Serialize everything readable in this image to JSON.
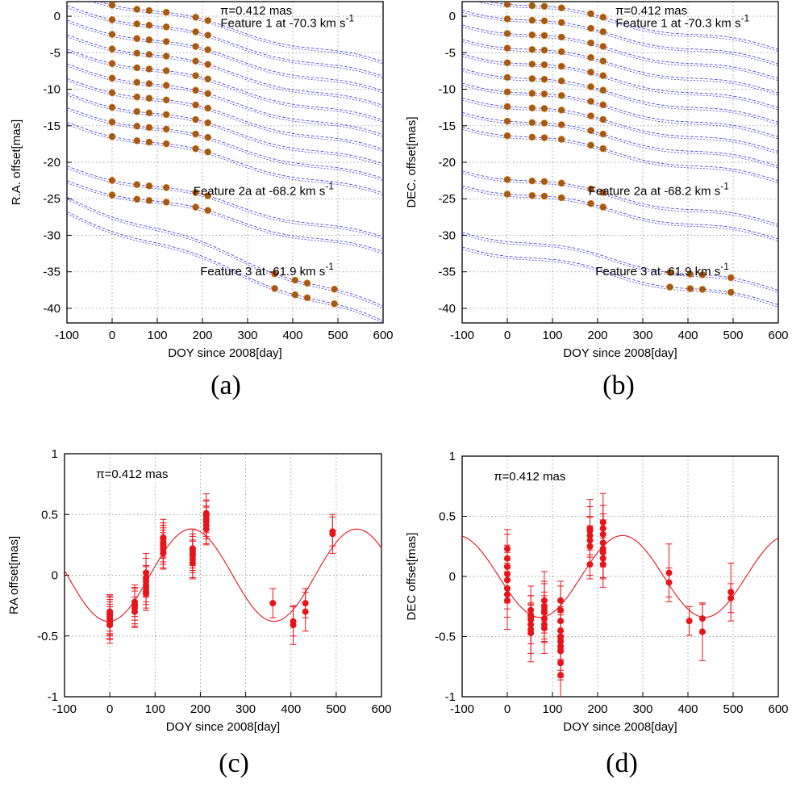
{
  "chart_data": [
    {
      "id": "a",
      "type": "line",
      "panel_label": "(a)",
      "xlabel": "DOY since 2008[day]",
      "ylabel": "R.A. offset[mas]",
      "xlim": [
        -100,
        600
      ],
      "ylim": [
        -42,
        2
      ],
      "xticks": [
        -100,
        0,
        100,
        200,
        300,
        400,
        500,
        600
      ],
      "yticks": [
        0,
        -5,
        -10,
        -15,
        -20,
        -25,
        -30,
        -35,
        -40
      ],
      "grid": true,
      "parallax": "π=0.412 mas",
      "feature_labels": [
        {
          "text": "Feature 1 at -70.3 km s",
          "sup": "-1",
          "at": [
            240,
            -1.5
          ]
        },
        {
          "text": "Feature 2a at -68.2 km s",
          "sup": "-1",
          "at": [
            180,
            -24.5
          ]
        },
        {
          "text": "Feature 3 at -61.9 km s",
          "sup": "-1",
          "at": [
            195,
            -35.5
          ]
        }
      ],
      "series": [
        {
          "name": "F1 spot 1",
          "start": 2.0,
          "epochs": [
            0,
            55,
            82,
            120,
            185,
            212
          ],
          "end": [
            -20,
            -6.5
          ],
          "pair": 0.3,
          "phase": 0
        },
        {
          "name": "F1 spot 2",
          "start": 0.0,
          "epochs": [
            0,
            55,
            82,
            120,
            185,
            212
          ],
          "end": [
            -20,
            -8.5
          ],
          "pair": 0.3,
          "phase": 0
        },
        {
          "name": "F1 spot 3",
          "start": -2.0,
          "epochs": [
            0,
            55,
            82,
            120,
            185,
            212
          ],
          "end": [
            -20,
            -10.5
          ],
          "pair": 0.3,
          "phase": 0
        },
        {
          "name": "F1 spot 4",
          "start": -4.0,
          "epochs": [
            0,
            55,
            82,
            120,
            185,
            212
          ],
          "end": [
            -20,
            -12.5
          ],
          "pair": 0.3,
          "phase": 0
        },
        {
          "name": "F1 spot 5",
          "start": -6.0,
          "epochs": [
            0,
            55,
            82,
            120,
            185,
            212
          ],
          "end": [
            -20,
            -14.5
          ],
          "pair": 0.3,
          "phase": 0
        },
        {
          "name": "F1 spot 6",
          "start": -8.0,
          "epochs": [
            0,
            55,
            82,
            120,
            185,
            212
          ],
          "end": [
            -20,
            -16.5
          ],
          "pair": 0.3,
          "phase": 0
        },
        {
          "name": "F1 spot 7",
          "start": -10.0,
          "epochs": [
            0,
            55,
            82,
            120,
            185,
            212
          ],
          "end": [
            -20,
            -18.5
          ],
          "pair": 0.3,
          "phase": 0
        },
        {
          "name": "F1 spot 8",
          "start": -12.0,
          "epochs": [
            0,
            55,
            82,
            120,
            185,
            212
          ],
          "end": [
            -20,
            -20.5
          ],
          "pair": 0.3,
          "phase": 0
        },
        {
          "name": "F1 spot 9",
          "start": -14.0,
          "epochs": [
            0,
            55,
            82,
            120,
            185,
            212
          ],
          "end": [
            -20,
            -22.5
          ],
          "pair": 0.3,
          "phase": 0
        },
        {
          "name": "F1 spot 10",
          "start": -16.0,
          "epochs": [
            0,
            55,
            82,
            120,
            185,
            212
          ],
          "end": [
            -20,
            -24.5
          ],
          "pair": 0.3,
          "phase": 0
        },
        {
          "name": "F2a spot 1",
          "start": -22.0,
          "epochs": [
            0,
            55,
            82,
            120,
            185,
            212
          ],
          "end": [
            -20,
            -30.5
          ],
          "pair": 0.3,
          "phase": 0
        },
        {
          "name": "F2a spot 2",
          "start": -24.0,
          "epochs": [
            0,
            55,
            82,
            120,
            185,
            212
          ],
          "end": [
            -20,
            -32.5
          ],
          "pair": 0.3,
          "phase": 0
        },
        {
          "name": "F3 spot 1",
          "start": -27.0,
          "epochs": [
            360,
            405,
            432,
            492
          ],
          "end": [
            -20,
            -40.0
          ],
          "pair": 0.3,
          "phase": 0
        },
        {
          "name": "F3 spot 2",
          "start": -29.0,
          "epochs": [
            360,
            405,
            432,
            492
          ],
          "end": [
            -20,
            -42.0
          ],
          "pair": 0.3,
          "phase": 0
        }
      ],
      "colors": {
        "fit": "#3a3ae0",
        "marker": "#ee1c1c",
        "marker_edge": "#d07a00",
        "cross": "#3aa81a"
      }
    },
    {
      "id": "b",
      "type": "line",
      "panel_label": "(b)",
      "xlabel": "DOY since 2008[day]",
      "ylabel": "DEC. offset[mas]",
      "xlim": [
        -100,
        600
      ],
      "ylim": [
        -42,
        2
      ],
      "xticks": [
        -100,
        0,
        100,
        200,
        300,
        400,
        500,
        600
      ],
      "yticks": [
        0,
        -5,
        -10,
        -15,
        -20,
        -25,
        -30,
        -35,
        -40
      ],
      "grid": true,
      "parallax": "π=0.412 mas",
      "feature_labels": [
        {
          "text": "Feature 1 at -70.3 km s",
          "sup": "-1",
          "at": [
            240,
            -1.5
          ]
        },
        {
          "text": "Feature 2a at -68.2 km s",
          "sup": "-1",
          "at": [
            180,
            -24.5
          ]
        },
        {
          "text": "Feature 3 at -61.9 km s",
          "sup": "-1",
          "at": [
            195,
            -35.5
          ]
        }
      ],
      "series": [
        {
          "name": "F1 spot 1",
          "start": 2.0,
          "epochs": [
            0,
            55,
            82,
            120,
            185,
            212
          ],
          "end": [
            -20,
            -4.5
          ],
          "pair": 0.3,
          "phase": 1
        },
        {
          "name": "F1 spot 2",
          "start": 0.0,
          "epochs": [
            0,
            55,
            82,
            120,
            185,
            212
          ],
          "end": [
            -20,
            -6.5
          ],
          "pair": 0.3,
          "phase": 1
        },
        {
          "name": "F1 spot 3",
          "start": -2.0,
          "epochs": [
            0,
            55,
            82,
            120,
            185,
            212
          ],
          "end": [
            -20,
            -8.5
          ],
          "pair": 0.3,
          "phase": 1
        },
        {
          "name": "F1 spot 4",
          "start": -4.0,
          "epochs": [
            0,
            55,
            82,
            120,
            185,
            212
          ],
          "end": [
            -20,
            -10.5
          ],
          "pair": 0.3,
          "phase": 1
        },
        {
          "name": "F1 spot 5",
          "start": -6.0,
          "epochs": [
            0,
            55,
            82,
            120,
            185,
            212
          ],
          "end": [
            -20,
            -12.5
          ],
          "pair": 0.3,
          "phase": 1
        },
        {
          "name": "F1 spot 6",
          "start": -8.0,
          "epochs": [
            0,
            55,
            82,
            120,
            185,
            212
          ],
          "end": [
            -20,
            -14.5
          ],
          "pair": 0.3,
          "phase": 1
        },
        {
          "name": "F1 spot 7",
          "start": -10.0,
          "epochs": [
            0,
            55,
            82,
            120,
            185,
            212
          ],
          "end": [
            -20,
            -16.5
          ],
          "pair": 0.3,
          "phase": 1
        },
        {
          "name": "F1 spot 8",
          "start": -12.0,
          "epochs": [
            0,
            55,
            82,
            120,
            185,
            212
          ],
          "end": [
            -20,
            -18.5
          ],
          "pair": 0.3,
          "phase": 1
        },
        {
          "name": "F1 spot 9",
          "start": -14.0,
          "epochs": [
            0,
            55,
            82,
            120,
            185,
            212
          ],
          "end": [
            -20,
            -20.5
          ],
          "pair": 0.3,
          "phase": 1
        },
        {
          "name": "F1 spot 10",
          "start": -16.0,
          "epochs": [
            0,
            55,
            82,
            120,
            185,
            212
          ],
          "end": [
            -20,
            -22.5
          ],
          "pair": 0.3,
          "phase": 1
        },
        {
          "name": "F2a spot 1",
          "start": -22.0,
          "epochs": [
            0,
            55,
            82,
            120,
            185,
            212
          ],
          "end": [
            -20,
            -28.5
          ],
          "pair": 0.3,
          "phase": 1
        },
        {
          "name": "F2a spot 2",
          "start": -24.0,
          "epochs": [
            0,
            55,
            82,
            120,
            185,
            212
          ],
          "end": [
            -20,
            -30.5
          ],
          "pair": 0.3,
          "phase": 1
        },
        {
          "name": "F3 spot 1",
          "start": -30.5,
          "epochs": [
            360,
            405,
            432,
            495
          ],
          "end": [
            -20,
            -37.5
          ],
          "pair": 0.3,
          "phase": 1
        },
        {
          "name": "F3 spot 2",
          "start": -32.5,
          "epochs": [
            360,
            405,
            432,
            495
          ],
          "end": [
            -20,
            -39.5
          ],
          "pair": 0.3,
          "phase": 1
        }
      ],
      "colors": {
        "fit": "#3a3ae0",
        "marker": "#ee1c1c",
        "marker_edge": "#d07a00",
        "cross": "#3aa81a"
      }
    },
    {
      "id": "c",
      "type": "scatter",
      "panel_label": "(c)",
      "xlabel": "DOY since 2008[day]",
      "ylabel": "RA offset[mas]",
      "xlim": [
        -100,
        600
      ],
      "ylim": [
        -1,
        1
      ],
      "xticks": [
        -100,
        0,
        100,
        200,
        300,
        400,
        500,
        600
      ],
      "yticks": [
        1,
        0.5,
        0,
        -0.5,
        -1
      ],
      "grid": true,
      "parallax": "π=0.412 mas",
      "model": {
        "amplitude": 0.38,
        "period": 365.25,
        "peak_doy": 180
      },
      "points": [
        [
          0,
          -0.3
        ],
        [
          0,
          -0.32
        ],
        [
          0,
          -0.34
        ],
        [
          0,
          -0.36
        ],
        [
          0,
          -0.38
        ],
        [
          0,
          -0.4
        ],
        [
          0,
          -0.41
        ],
        [
          0,
          -0.33
        ],
        [
          55,
          -0.22
        ],
        [
          55,
          -0.24
        ],
        [
          55,
          -0.25
        ],
        [
          55,
          -0.27
        ],
        [
          55,
          -0.3
        ],
        [
          80,
          -0.02
        ],
        [
          80,
          -0.05
        ],
        [
          80,
          -0.08
        ],
        [
          80,
          -0.1
        ],
        [
          80,
          -0.13
        ],
        [
          80,
          -0.15
        ],
        [
          80,
          0.02
        ],
        [
          118,
          0.18
        ],
        [
          118,
          0.21
        ],
        [
          118,
          0.23
        ],
        [
          118,
          0.25
        ],
        [
          118,
          0.27
        ],
        [
          118,
          0.3
        ],
        [
          118,
          0.31
        ],
        [
          118,
          0.25
        ],
        [
          183,
          0.1
        ],
        [
          183,
          0.13
        ],
        [
          183,
          0.16
        ],
        [
          183,
          0.18
        ],
        [
          183,
          0.2
        ],
        [
          183,
          0.22
        ],
        [
          213,
          0.38
        ],
        [
          213,
          0.41
        ],
        [
          213,
          0.44
        ],
        [
          213,
          0.46
        ],
        [
          213,
          0.49
        ],
        [
          213,
          0.51
        ],
        [
          360,
          -0.23
        ],
        [
          405,
          -0.41
        ],
        [
          405,
          -0.38
        ],
        [
          432,
          -0.3
        ],
        [
          432,
          -0.23
        ],
        [
          492,
          0.34
        ],
        [
          492,
          0.36
        ]
      ],
      "errors": [
        0.12,
        0.16
      ],
      "colors": {
        "series": "#e8141a"
      }
    },
    {
      "id": "d",
      "type": "scatter",
      "panel_label": "(d)",
      "xlabel": "DOY since 2008[day]",
      "ylabel": "DEC offset[mas]",
      "xlim": [
        -100,
        600
      ],
      "ylim": [
        -1,
        1
      ],
      "xticks": [
        -100,
        0,
        100,
        200,
        300,
        400,
        500,
        600
      ],
      "yticks": [
        1,
        0.5,
        0,
        -0.5,
        -1
      ],
      "grid": true,
      "parallax": "π=0.412 mas",
      "model": {
        "amplitude": 0.34,
        "period": 365.25,
        "peak_doy": 255
      },
      "points": [
        [
          0,
          0.23
        ],
        [
          0,
          0.15
        ],
        [
          0,
          0.08
        ],
        [
          0,
          0.02
        ],
        [
          0,
          -0.03
        ],
        [
          0,
          -0.1
        ],
        [
          0,
          -0.15
        ],
        [
          0,
          -0.2
        ],
        [
          52,
          -0.28
        ],
        [
          52,
          -0.32
        ],
        [
          52,
          -0.36
        ],
        [
          52,
          -0.4
        ],
        [
          52,
          -0.44
        ],
        [
          52,
          -0.47
        ],
        [
          52,
          -0.34
        ],
        [
          82,
          -0.2
        ],
        [
          82,
          -0.25
        ],
        [
          82,
          -0.3
        ],
        [
          82,
          -0.35
        ],
        [
          82,
          -0.4
        ],
        [
          82,
          -0.43
        ],
        [
          82,
          -0.28
        ],
        [
          118,
          -0.2
        ],
        [
          118,
          -0.28
        ],
        [
          118,
          -0.37
        ],
        [
          118,
          -0.45
        ],
        [
          118,
          -0.5
        ],
        [
          118,
          -0.54
        ],
        [
          118,
          -0.58
        ],
        [
          118,
          -0.62
        ],
        [
          118,
          -0.72
        ],
        [
          118,
          -0.82
        ],
        [
          183,
          0.1
        ],
        [
          183,
          0.25
        ],
        [
          183,
          0.3
        ],
        [
          183,
          0.34
        ],
        [
          183,
          0.38
        ],
        [
          183,
          0.4
        ],
        [
          212,
          0.1
        ],
        [
          212,
          0.15
        ],
        [
          212,
          0.2
        ],
        [
          212,
          0.23
        ],
        [
          212,
          0.28
        ],
        [
          212,
          0.35
        ],
        [
          212,
          0.4
        ],
        [
          212,
          0.45
        ],
        [
          358,
          -0.05
        ],
        [
          358,
          0.03
        ],
        [
          403,
          -0.37
        ],
        [
          432,
          -0.46
        ],
        [
          432,
          -0.35
        ],
        [
          495,
          -0.13
        ],
        [
          495,
          -0.18
        ]
      ],
      "errors": [
        0.12,
        0.24
      ],
      "colors": {
        "series": "#e8141a"
      }
    }
  ]
}
